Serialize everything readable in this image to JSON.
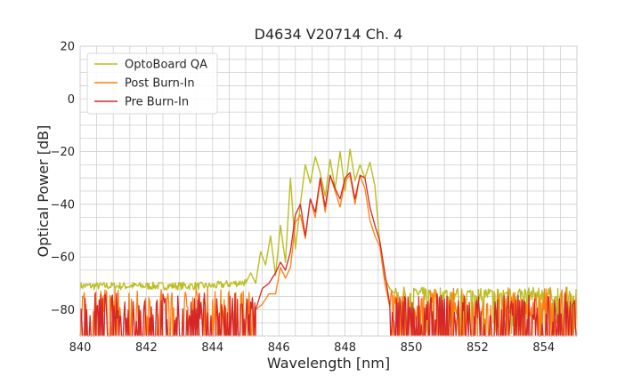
{
  "chart_data": {
    "type": "line",
    "title": "D4634 V20714 Ch. 4",
    "xlabel": "Wavelength [nm]",
    "ylabel": "Optical Power [dB]",
    "xlim": [
      840,
      855
    ],
    "ylim": [
      -90,
      20
    ],
    "x_ticks": [
      840,
      842,
      844,
      846,
      848,
      850,
      852,
      854
    ],
    "y_ticks": [
      20,
      0,
      -20,
      -40,
      -60,
      -80
    ],
    "x_minor_step": 0.5,
    "y_minor_step": 5,
    "grid": true,
    "legend_position": "top-left",
    "noise_floor": {
      "left_range": [
        840,
        845.4
      ],
      "right_range": [
        849.4,
        855
      ],
      "bottom": -90
    },
    "series": [
      {
        "name": "OptoBoard QA",
        "color": "#bcbd22",
        "floor_level": -71,
        "x": [
          845.0,
          845.15,
          845.3,
          845.45,
          845.6,
          845.75,
          845.9,
          846.05,
          846.2,
          846.35,
          846.5,
          846.65,
          846.8,
          846.95,
          847.1,
          847.25,
          847.4,
          847.55,
          847.7,
          847.85,
          848.0,
          848.15,
          848.3,
          848.45,
          848.6,
          848.75,
          848.9,
          849.05,
          849.2,
          849.35,
          849.5
        ],
        "y": [
          -70,
          -66,
          -70,
          -58,
          -63,
          -52,
          -67,
          -48,
          -62,
          -30,
          -57,
          -40,
          -25,
          -32,
          -22,
          -28,
          -37,
          -23,
          -34,
          -20,
          -35,
          -19,
          -31,
          -25,
          -30,
          -24,
          -33,
          -55,
          -68,
          -72,
          -74
        ]
      },
      {
        "name": "Post Burn-In",
        "color": "#ff7f0e",
        "floor_level": -80,
        "x": [
          845.3,
          845.5,
          845.7,
          845.9,
          846.05,
          846.2,
          846.35,
          846.5,
          846.65,
          846.8,
          846.95,
          847.1,
          847.25,
          847.4,
          847.55,
          847.7,
          847.85,
          848.0,
          848.15,
          848.3,
          848.45,
          848.6,
          848.75,
          848.9,
          849.05,
          849.2,
          849.35
        ],
        "y": [
          -80,
          -78,
          -74,
          -74,
          -64,
          -68,
          -64,
          -47,
          -44,
          -53,
          -38,
          -45,
          -31,
          -43,
          -29,
          -35,
          -41,
          -31,
          -29,
          -40,
          -29,
          -34,
          -46,
          -52,
          -56,
          -70,
          -79
        ]
      },
      {
        "name": "Pre Burn-In",
        "color": "#d62728",
        "floor_level": -82,
        "x": [
          845.3,
          845.5,
          845.7,
          845.9,
          846.05,
          846.2,
          846.35,
          846.5,
          846.65,
          846.8,
          846.95,
          847.1,
          847.25,
          847.4,
          847.55,
          847.7,
          847.85,
          848.0,
          848.15,
          848.3,
          848.45,
          848.6,
          848.75,
          848.9,
          849.05,
          849.2,
          849.35
        ],
        "y": [
          -80,
          -72,
          -70,
          -66,
          -62,
          -65,
          -58,
          -44,
          -40,
          -52,
          -38,
          -43,
          -30,
          -41,
          -29,
          -34,
          -38,
          -30,
          -28,
          -38,
          -29,
          -30,
          -41,
          -48,
          -54,
          -66,
          -78
        ]
      }
    ]
  }
}
